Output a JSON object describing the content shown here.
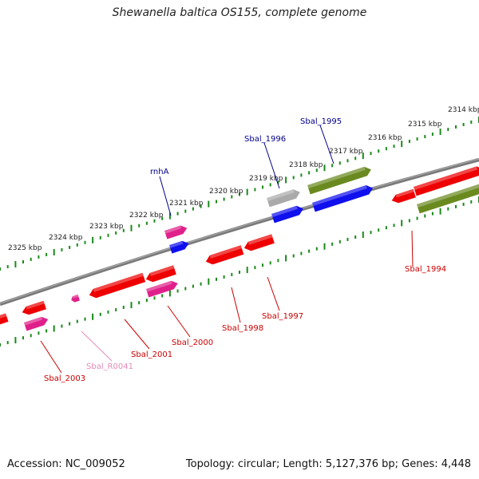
{
  "title": "Shewanella baltica OS155, complete genome",
  "footer": {
    "accession": "Accession: NC_009052",
    "topology": "Topology: circular; Length: 5,127,376 bp; Genes: 4,448"
  },
  "colors": {
    "backbone": "#808080",
    "ticks": "#1a8a1a",
    "red_gene": "#ee0000",
    "magenta_gene": "#e0208a",
    "blue_gene": "#1010ee",
    "olive_gene": "#6a8a20",
    "gray_gene": "#aaaaaa",
    "label_red": "#cc0000",
    "label_blue": "#00008b",
    "label_pink": "#e68ab5"
  },
  "kbp_labels": [
    "2314 kbp",
    "2315 kbp",
    "2316 kbp",
    "2317 kbp",
    "2318 kbp",
    "2319 kbp",
    "2320 kbp",
    "2321 kbp",
    "2322 kbp",
    "2323 kbp",
    "2324 kbp",
    "2325 kbp"
  ],
  "gene_labels": [
    {
      "text": "Sbal_1995",
      "color": "blue"
    },
    {
      "text": "Sbal_1996",
      "color": "blue"
    },
    {
      "text": "rnhA",
      "color": "blue"
    },
    {
      "text": "Sbal_1994",
      "color": "red"
    },
    {
      "text": "Sbal_1997",
      "color": "red"
    },
    {
      "text": "Sbal_1998",
      "color": "red"
    },
    {
      "text": "Sbal_2000",
      "color": "red"
    },
    {
      "text": "Sbal_2001",
      "color": "red"
    },
    {
      "text": "Sbal_R0041",
      "color": "pink"
    },
    {
      "text": "Sbal_2003",
      "color": "red"
    }
  ]
}
